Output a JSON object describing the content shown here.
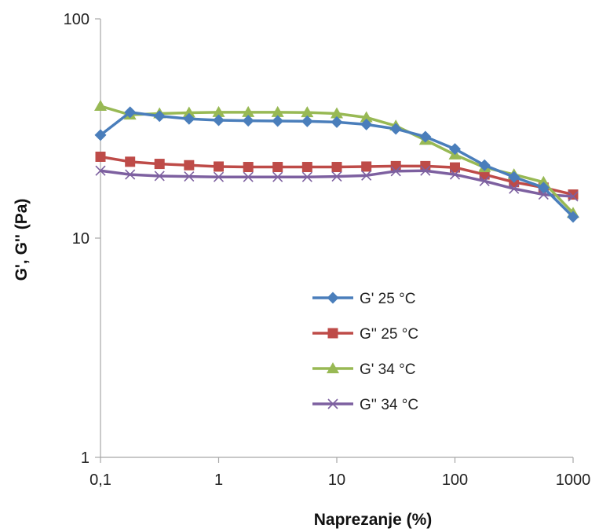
{
  "chart_data": {
    "type": "line",
    "xlabel": "Naprezanje (%)",
    "ylabel": "G', G'' (Pa)",
    "x_scale": "log",
    "y_scale": "log",
    "xlim": [
      0.1,
      1000
    ],
    "ylim": [
      1,
      100
    ],
    "x_tick_labels": [
      "0,1",
      "1",
      "10",
      "100",
      "1000"
    ],
    "y_tick_labels": [
      "1",
      "10",
      "100"
    ],
    "grid": false,
    "legend_position": "center",
    "series": [
      {
        "name": "G' 25 °C",
        "color": "#4a7ebb",
        "marker": "diamond",
        "x": [
          0.1,
          0.178,
          0.316,
          0.562,
          1,
          1.78,
          3.16,
          5.62,
          10,
          17.8,
          31.6,
          56.2,
          100,
          178,
          316,
          562,
          1000
        ],
        "y": [
          29.5,
          37.5,
          36,
          35,
          34.5,
          34.3,
          34.2,
          34.1,
          33.8,
          33,
          31.5,
          29,
          25.5,
          21.5,
          19,
          17,
          12.5
        ]
      },
      {
        "name": "G'' 25 °C",
        "color": "#be4b48",
        "marker": "square",
        "x": [
          0.1,
          0.178,
          0.316,
          0.562,
          1,
          1.78,
          3.16,
          5.62,
          10,
          17.8,
          31.6,
          56.2,
          100,
          178,
          316,
          562,
          1000
        ],
        "y": [
          23.5,
          22.3,
          21.8,
          21.5,
          21.2,
          21.1,
          21.1,
          21.1,
          21.1,
          21.2,
          21.3,
          21.3,
          21,
          19.5,
          18,
          17,
          15.8
        ]
      },
      {
        "name": "G' 34 °C",
        "color": "#98b954",
        "marker": "triangle",
        "x": [
          0.1,
          0.178,
          0.316,
          0.562,
          1,
          1.78,
          3.16,
          5.62,
          10,
          17.8,
          31.6,
          56.2,
          100,
          178,
          316,
          562,
          1000
        ],
        "y": [
          40,
          36.5,
          37,
          37.3,
          37.5,
          37.5,
          37.5,
          37.4,
          37,
          35.5,
          32.5,
          28,
          24,
          21,
          19.5,
          18,
          13
        ]
      },
      {
        "name": "G'' 34 °C",
        "color": "#7d60a0",
        "marker": "x",
        "x": [
          0.1,
          0.178,
          0.316,
          0.562,
          1,
          1.78,
          3.16,
          5.62,
          10,
          17.8,
          31.6,
          56.2,
          100,
          178,
          316,
          562,
          1000
        ],
        "y": [
          20.3,
          19.5,
          19.2,
          19.1,
          19,
          19,
          19,
          19,
          19.1,
          19.3,
          20.2,
          20.3,
          19.5,
          18.2,
          16.8,
          15.8,
          15.5
        ]
      }
    ]
  }
}
